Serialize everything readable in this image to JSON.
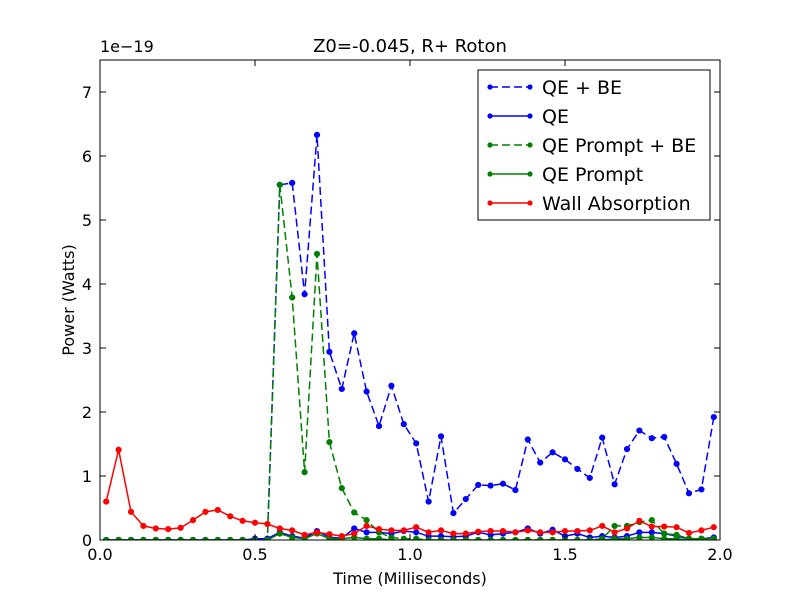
{
  "chart_data": {
    "type": "line",
    "title": "Z0=-0.045, R+ Roton",
    "xlabel": "Time (Milliseconds)",
    "ylabel": "Power (Watts)",
    "y_offset_label": "1e−19",
    "xlim": [
      0.0,
      2.0
    ],
    "ylim": [
      0,
      7.5
    ],
    "x_ticks": [
      0.0,
      0.5,
      1.0,
      1.5,
      2.0
    ],
    "x_tick_labels": [
      "0.0",
      "0.5",
      "1.0",
      "1.5",
      "2.0"
    ],
    "y_ticks": [
      0,
      1,
      2,
      3,
      4,
      5,
      6,
      7
    ],
    "y_tick_labels": [
      "0",
      "1",
      "2",
      "3",
      "4",
      "5",
      "6",
      "7"
    ],
    "grid": false,
    "legend_position": "top-right",
    "series": [
      {
        "name": "QE + BE",
        "color": "#0000ff",
        "dashed": true,
        "points": [
          [
            0.02,
            0.0
          ],
          [
            0.06,
            0.0
          ],
          [
            0.1,
            0.0
          ],
          [
            0.14,
            0.0
          ],
          [
            0.18,
            0.0
          ],
          [
            0.22,
            0.0
          ],
          [
            0.26,
            0.0
          ],
          [
            0.3,
            0.0
          ],
          [
            0.34,
            0.0
          ],
          [
            0.38,
            0.0
          ],
          [
            0.42,
            0.0
          ],
          [
            0.46,
            0.0
          ],
          [
            0.5,
            0.02
          ],
          [
            0.54,
            0.02
          ],
          [
            0.58,
            5.55
          ],
          [
            0.62,
            5.58
          ],
          [
            0.66,
            3.84
          ],
          [
            0.7,
            6.33
          ],
          [
            0.74,
            2.94
          ],
          [
            0.78,
            2.36
          ],
          [
            0.82,
            3.23
          ],
          [
            0.86,
            2.32
          ],
          [
            0.9,
            1.78
          ],
          [
            0.94,
            2.41
          ],
          [
            0.98,
            1.81
          ],
          [
            1.02,
            1.51
          ],
          [
            1.06,
            0.6
          ],
          [
            1.1,
            1.62
          ],
          [
            1.14,
            0.42
          ],
          [
            1.18,
            0.64
          ],
          [
            1.22,
            0.86
          ],
          [
            1.26,
            0.85
          ],
          [
            1.3,
            0.88
          ],
          [
            1.34,
            0.78
          ],
          [
            1.38,
            1.57
          ],
          [
            1.42,
            1.21
          ],
          [
            1.46,
            1.37
          ],
          [
            1.5,
            1.26
          ],
          [
            1.54,
            1.11
          ],
          [
            1.58,
            0.97
          ],
          [
            1.62,
            1.6
          ],
          [
            1.66,
            0.87
          ],
          [
            1.7,
            1.42
          ],
          [
            1.74,
            1.71
          ],
          [
            1.78,
            1.59
          ],
          [
            1.82,
            1.61
          ],
          [
            1.86,
            1.19
          ],
          [
            1.9,
            0.73
          ],
          [
            1.94,
            0.79
          ],
          [
            1.98,
            1.92
          ]
        ]
      },
      {
        "name": "QE",
        "color": "#0000ff",
        "dashed": false,
        "points": [
          [
            0.02,
            0.0
          ],
          [
            0.06,
            0.0
          ],
          [
            0.1,
            0.0
          ],
          [
            0.14,
            0.0
          ],
          [
            0.18,
            0.0
          ],
          [
            0.22,
            0.0
          ],
          [
            0.26,
            0.0
          ],
          [
            0.3,
            0.0
          ],
          [
            0.34,
            0.0
          ],
          [
            0.38,
            0.0
          ],
          [
            0.42,
            0.0
          ],
          [
            0.46,
            0.0
          ],
          [
            0.5,
            0.02
          ],
          [
            0.54,
            0.02
          ],
          [
            0.58,
            0.12
          ],
          [
            0.62,
            0.06
          ],
          [
            0.66,
            0.03
          ],
          [
            0.7,
            0.14
          ],
          [
            0.74,
            0.04
          ],
          [
            0.78,
            0.03
          ],
          [
            0.82,
            0.18
          ],
          [
            0.86,
            0.12
          ],
          [
            0.9,
            0.12
          ],
          [
            0.94,
            0.1
          ],
          [
            0.98,
            0.14
          ],
          [
            1.02,
            0.12
          ],
          [
            1.06,
            0.06
          ],
          [
            1.1,
            0.06
          ],
          [
            1.14,
            0.05
          ],
          [
            1.18,
            0.06
          ],
          [
            1.22,
            0.12
          ],
          [
            1.26,
            0.08
          ],
          [
            1.3,
            0.1
          ],
          [
            1.34,
            0.12
          ],
          [
            1.38,
            0.18
          ],
          [
            1.42,
            0.1
          ],
          [
            1.46,
            0.16
          ],
          [
            1.5,
            0.06
          ],
          [
            1.54,
            0.1
          ],
          [
            1.58,
            0.04
          ],
          [
            1.62,
            0.06
          ],
          [
            1.66,
            0.04
          ],
          [
            1.7,
            0.06
          ],
          [
            1.74,
            0.12
          ],
          [
            1.78,
            0.12
          ],
          [
            1.82,
            0.1
          ],
          [
            1.86,
            0.06
          ],
          [
            1.9,
            0.02
          ],
          [
            1.94,
            0.02
          ],
          [
            1.98,
            0.04
          ]
        ]
      },
      {
        "name": "QE Prompt + BE",
        "color": "#008000",
        "dashed": true,
        "points": [
          [
            0.02,
            0.0
          ],
          [
            0.06,
            0.0
          ],
          [
            0.1,
            0.0
          ],
          [
            0.14,
            0.0
          ],
          [
            0.18,
            0.0
          ],
          [
            0.22,
            0.0
          ],
          [
            0.26,
            0.0
          ],
          [
            0.3,
            0.0
          ],
          [
            0.34,
            0.0
          ],
          [
            0.38,
            0.0
          ],
          [
            0.42,
            0.0
          ],
          [
            0.46,
            0.0
          ],
          [
            0.5,
            0.0
          ],
          [
            0.54,
            0.0
          ],
          [
            0.58,
            5.55
          ],
          [
            0.62,
            3.79
          ],
          [
            0.66,
            1.06
          ],
          [
            0.7,
            4.47
          ],
          [
            0.74,
            1.53
          ],
          [
            0.78,
            0.81
          ],
          [
            0.82,
            0.43
          ],
          [
            0.86,
            0.31
          ],
          [
            0.9,
            0.12
          ],
          [
            0.94,
            0.04
          ],
          [
            0.98,
            0.02
          ],
          [
            1.02,
            0.02
          ],
          [
            1.06,
            0.0
          ],
          [
            1.1,
            0.0
          ],
          [
            1.14,
            0.0
          ],
          [
            1.18,
            0.0
          ],
          [
            1.22,
            0.0
          ],
          [
            1.26,
            0.0
          ],
          [
            1.3,
            0.0
          ],
          [
            1.34,
            0.0
          ],
          [
            1.38,
            0.0
          ],
          [
            1.42,
            0.0
          ],
          [
            1.46,
            0.0
          ],
          [
            1.5,
            0.0
          ],
          [
            1.54,
            0.0
          ],
          [
            1.58,
            0.0
          ],
          [
            1.62,
            0.02
          ],
          [
            1.66,
            0.22
          ],
          [
            1.7,
            0.22
          ],
          [
            1.74,
            0.28
          ],
          [
            1.78,
            0.31
          ],
          [
            1.82,
            0.1
          ],
          [
            1.86,
            0.08
          ],
          [
            1.9,
            0.02
          ],
          [
            1.94,
            0.02
          ],
          [
            1.98,
            0.02
          ]
        ]
      },
      {
        "name": "QE Prompt",
        "color": "#008000",
        "dashed": false,
        "points": [
          [
            0.02,
            0.0
          ],
          [
            0.06,
            0.0
          ],
          [
            0.1,
            0.0
          ],
          [
            0.14,
            0.0
          ],
          [
            0.18,
            0.0
          ],
          [
            0.22,
            0.0
          ],
          [
            0.26,
            0.0
          ],
          [
            0.3,
            0.0
          ],
          [
            0.34,
            0.0
          ],
          [
            0.38,
            0.0
          ],
          [
            0.42,
            0.0
          ],
          [
            0.46,
            0.0
          ],
          [
            0.5,
            0.0
          ],
          [
            0.54,
            0.0
          ],
          [
            0.58,
            0.1
          ],
          [
            0.62,
            0.04
          ],
          [
            0.66,
            0.02
          ],
          [
            0.7,
            0.1
          ],
          [
            0.74,
            0.02
          ],
          [
            0.78,
            0.02
          ],
          [
            0.82,
            0.04
          ],
          [
            0.86,
            0.02
          ],
          [
            0.9,
            0.02
          ],
          [
            0.94,
            0.0
          ],
          [
            0.98,
            0.0
          ],
          [
            1.02,
            0.0
          ],
          [
            1.06,
            0.0
          ],
          [
            1.1,
            0.0
          ],
          [
            1.14,
            0.0
          ],
          [
            1.18,
            0.0
          ],
          [
            1.22,
            0.0
          ],
          [
            1.26,
            0.0
          ],
          [
            1.3,
            0.0
          ],
          [
            1.34,
            0.0
          ],
          [
            1.38,
            0.0
          ],
          [
            1.42,
            0.0
          ],
          [
            1.46,
            0.0
          ],
          [
            1.5,
            0.0
          ],
          [
            1.54,
            0.0
          ],
          [
            1.58,
            0.0
          ],
          [
            1.62,
            0.0
          ],
          [
            1.66,
            0.02
          ],
          [
            1.7,
            0.02
          ],
          [
            1.74,
            0.04
          ],
          [
            1.78,
            0.04
          ],
          [
            1.82,
            0.02
          ],
          [
            1.86,
            0.02
          ],
          [
            1.9,
            0.0
          ],
          [
            1.94,
            0.0
          ],
          [
            1.98,
            0.0
          ]
        ]
      },
      {
        "name": "Wall Absorption",
        "color": "#ff0000",
        "dashed": false,
        "points": [
          [
            0.02,
            0.6
          ],
          [
            0.06,
            1.41
          ],
          [
            0.1,
            0.44
          ],
          [
            0.14,
            0.22
          ],
          [
            0.18,
            0.18
          ],
          [
            0.22,
            0.17
          ],
          [
            0.26,
            0.19
          ],
          [
            0.3,
            0.31
          ],
          [
            0.34,
            0.44
          ],
          [
            0.38,
            0.47
          ],
          [
            0.42,
            0.37
          ],
          [
            0.46,
            0.3
          ],
          [
            0.5,
            0.27
          ],
          [
            0.54,
            0.25
          ],
          [
            0.58,
            0.18
          ],
          [
            0.62,
            0.15
          ],
          [
            0.66,
            0.08
          ],
          [
            0.7,
            0.12
          ],
          [
            0.74,
            0.09
          ],
          [
            0.78,
            0.06
          ],
          [
            0.82,
            0.1
          ],
          [
            0.86,
            0.22
          ],
          [
            0.9,
            0.17
          ],
          [
            0.94,
            0.15
          ],
          [
            0.98,
            0.15
          ],
          [
            1.02,
            0.2
          ],
          [
            1.06,
            0.12
          ],
          [
            1.1,
            0.15
          ],
          [
            1.14,
            0.1
          ],
          [
            1.18,
            0.1
          ],
          [
            1.22,
            0.13
          ],
          [
            1.26,
            0.14
          ],
          [
            1.3,
            0.14
          ],
          [
            1.34,
            0.12
          ],
          [
            1.38,
            0.15
          ],
          [
            1.42,
            0.12
          ],
          [
            1.46,
            0.12
          ],
          [
            1.5,
            0.14
          ],
          [
            1.54,
            0.14
          ],
          [
            1.58,
            0.15
          ],
          [
            1.62,
            0.22
          ],
          [
            1.66,
            0.12
          ],
          [
            1.7,
            0.18
          ],
          [
            1.74,
            0.3
          ],
          [
            1.78,
            0.21
          ],
          [
            1.82,
            0.21
          ],
          [
            1.86,
            0.2
          ],
          [
            1.9,
            0.11
          ],
          [
            1.94,
            0.15
          ],
          [
            1.98,
            0.2
          ]
        ]
      }
    ]
  }
}
